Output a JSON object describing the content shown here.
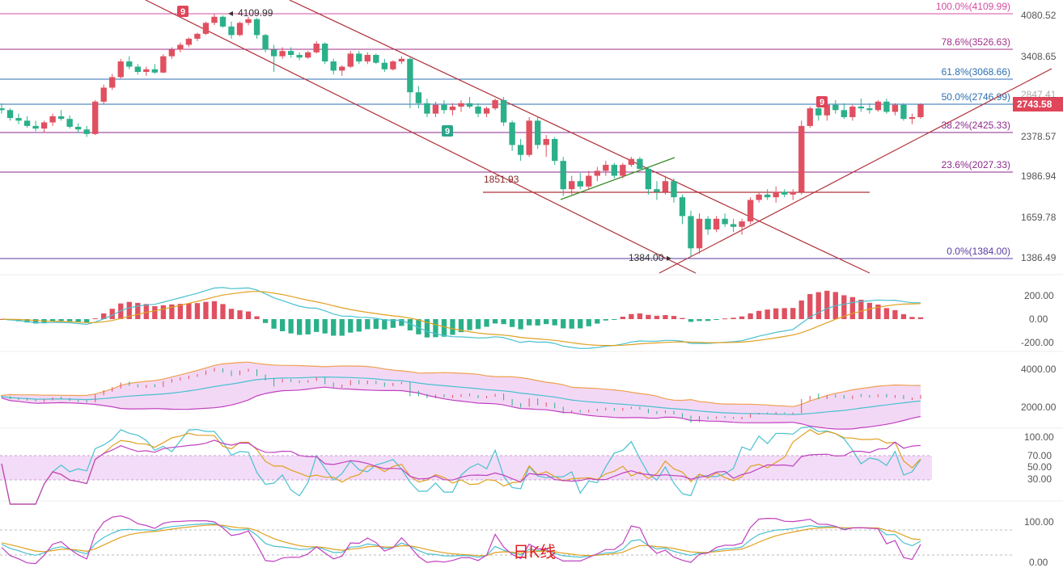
{
  "chart_data": {
    "type": "candlestick",
    "title": "日K线",
    "current_price": "2743.58",
    "price_axis_ticks": [
      "4080.52",
      "3408.65",
      "2847.41",
      "2378.57",
      "1986.94",
      "1659.78",
      "1386.49"
    ],
    "fib_levels": [
      {
        "label": "100.0%(4109.99)",
        "value": 4109.99,
        "color": "#d44ca0"
      },
      {
        "label": "78.6%(3526.63)",
        "value": 3526.63,
        "color": "#a0308a"
      },
      {
        "label": "61.8%(3068.66)",
        "value": 3068.66,
        "color": "#2c6fb0"
      },
      {
        "label": "50.0%(2746.99)",
        "value": 2746.99,
        "color": "#2c6fb0"
      },
      {
        "label": "38.2%(2425.33)",
        "value": 2425.33,
        "color": "#8a2a8a"
      },
      {
        "label": "23.6%(2027.33)",
        "value": 2027.33,
        "color": "#8a2a8a"
      },
      {
        "label": "0.0%(1384.00)",
        "value": 1384.0,
        "color": "#5a3aa0"
      }
    ],
    "annotations": [
      {
        "text": "4109.99",
        "value": 4109.99
      },
      {
        "text": "1851.93",
        "value": 1851.93
      },
      {
        "text": "1384.00",
        "value": 1384.0
      }
    ],
    "td_markers": [
      {
        "text": "9",
        "color": "#e0455a"
      },
      {
        "text": "9",
        "color": "#2aa58a"
      },
      {
        "text": "9",
        "color": "#e0455a"
      }
    ],
    "candles": [
      [
        2700,
        2760,
        2640,
        2680
      ],
      [
        2680,
        2700,
        2560,
        2590
      ],
      [
        2590,
        2640,
        2520,
        2560
      ],
      [
        2560,
        2610,
        2480,
        2500
      ],
      [
        2500,
        2560,
        2440,
        2470
      ],
      [
        2470,
        2560,
        2420,
        2540
      ],
      [
        2540,
        2640,
        2500,
        2610
      ],
      [
        2610,
        2680,
        2560,
        2580
      ],
      [
        2580,
        2620,
        2470,
        2490
      ],
      [
        2490,
        2530,
        2420,
        2460
      ],
      [
        2460,
        2500,
        2380,
        2410
      ],
      [
        2410,
        2800,
        2400,
        2780
      ],
      [
        2780,
        3000,
        2750,
        2960
      ],
      [
        2960,
        3150,
        2930,
        3100
      ],
      [
        3100,
        3380,
        3080,
        3340
      ],
      [
        3340,
        3420,
        3220,
        3260
      ],
      [
        3260,
        3300,
        3140,
        3180
      ],
      [
        3180,
        3260,
        3120,
        3220
      ],
      [
        3220,
        3300,
        3150,
        3170
      ],
      [
        3170,
        3450,
        3160,
        3420
      ],
      [
        3420,
        3560,
        3380,
        3520
      ],
      [
        3520,
        3640,
        3480,
        3600
      ],
      [
        3600,
        3720,
        3560,
        3700
      ],
      [
        3700,
        3800,
        3660,
        3780
      ],
      [
        3780,
        3980,
        3760,
        3960
      ],
      [
        3960,
        4110,
        3920,
        4060
      ],
      [
        4060,
        4080,
        3880,
        3900
      ],
      [
        3900,
        3980,
        3700,
        3760
      ],
      [
        3760,
        3980,
        3740,
        3960
      ],
      [
        3960,
        4060,
        3920,
        4020
      ],
      [
        4020,
        4040,
        3700,
        3760
      ],
      [
        3760,
        3780,
        3480,
        3520
      ],
      [
        3520,
        3600,
        3180,
        3420
      ],
      [
        3420,
        3560,
        3380,
        3500
      ],
      [
        3500,
        3560,
        3400,
        3440
      ],
      [
        3440,
        3480,
        3360,
        3400
      ],
      [
        3400,
        3500,
        3380,
        3480
      ],
      [
        3480,
        3660,
        3460,
        3620
      ],
      [
        3620,
        3640,
        3300,
        3340
      ],
      [
        3340,
        3380,
        3140,
        3200
      ],
      [
        3200,
        3280,
        3120,
        3260
      ],
      [
        3260,
        3500,
        3240,
        3460
      ],
      [
        3460,
        3500,
        3300,
        3340
      ],
      [
        3340,
        3480,
        3300,
        3440
      ],
      [
        3440,
        3460,
        3300,
        3320
      ],
      [
        3320,
        3380,
        3180,
        3220
      ],
      [
        3220,
        3360,
        3200,
        3340
      ],
      [
        3340,
        3420,
        3300,
        3380
      ],
      [
        3380,
        3400,
        2700,
        2900
      ],
      [
        2900,
        2980,
        2700,
        2760
      ],
      [
        2760,
        2820,
        2600,
        2640
      ],
      [
        2640,
        2780,
        2600,
        2740
      ],
      [
        2740,
        2800,
        2640,
        2680
      ],
      [
        2680,
        2760,
        2620,
        2720
      ],
      [
        2720,
        2800,
        2660,
        2760
      ],
      [
        2760,
        2840,
        2700,
        2720
      ],
      [
        2720,
        2760,
        2600,
        2640
      ],
      [
        2640,
        2720,
        2600,
        2700
      ],
      [
        2700,
        2820,
        2680,
        2800
      ],
      [
        2800,
        2840,
        2500,
        2540
      ],
      [
        2540,
        2560,
        2240,
        2300
      ],
      [
        2300,
        2360,
        2140,
        2200
      ],
      [
        2200,
        2600,
        2180,
        2560
      ],
      [
        2560,
        2600,
        2260,
        2300
      ],
      [
        2300,
        2400,
        2180,
        2360
      ],
      [
        2360,
        2380,
        2100,
        2140
      ],
      [
        2140,
        2180,
        1850,
        1900
      ],
      [
        1900,
        2000,
        1860,
        1960
      ],
      [
        1960,
        2020,
        1900,
        1920
      ],
      [
        1920,
        2040,
        1900,
        2000
      ],
      [
        2000,
        2080,
        1960,
        2040
      ],
      [
        2040,
        2140,
        2000,
        2100
      ],
      [
        2100,
        2120,
        1980,
        2000
      ],
      [
        2000,
        2120,
        1980,
        2100
      ],
      [
        2100,
        2180,
        2080,
        2160
      ],
      [
        2160,
        2180,
        2040,
        2060
      ],
      [
        2060,
        2080,
        1860,
        1900
      ],
      [
        1900,
        1960,
        1820,
        1880
      ],
      [
        1880,
        2000,
        1860,
        1960
      ],
      [
        1960,
        1980,
        1800,
        1840
      ],
      [
        1840,
        1860,
        1640,
        1700
      ],
      [
        1700,
        1740,
        1400,
        1460
      ],
      [
        1460,
        1720,
        1420,
        1680
      ],
      [
        1680,
        1700,
        1560,
        1600
      ],
      [
        1600,
        1700,
        1580,
        1680
      ],
      [
        1680,
        1720,
        1620,
        1640
      ],
      [
        1640,
        1680,
        1580,
        1620
      ],
      [
        1620,
        1680,
        1560,
        1660
      ],
      [
        1660,
        1840,
        1640,
        1820
      ],
      [
        1820,
        1880,
        1800,
        1860
      ],
      [
        1860,
        1900,
        1820,
        1840
      ],
      [
        1840,
        1920,
        1800,
        1880
      ],
      [
        1880,
        1900,
        1840,
        1860
      ],
      [
        1860,
        1900,
        1820,
        1880
      ],
      [
        1880,
        2560,
        1860,
        2500
      ],
      [
        2500,
        2720,
        2480,
        2700
      ],
      [
        2700,
        2840,
        2560,
        2620
      ],
      [
        2620,
        2760,
        2560,
        2740
      ],
      [
        2740,
        2800,
        2640,
        2680
      ],
      [
        2680,
        2760,
        2580,
        2600
      ],
      [
        2600,
        2740,
        2560,
        2720
      ],
      [
        2720,
        2820,
        2660,
        2700
      ],
      [
        2700,
        2760,
        2640,
        2680
      ],
      [
        2680,
        2800,
        2660,
        2780
      ],
      [
        2780,
        2820,
        2640,
        2660
      ],
      [
        2660,
        2760,
        2620,
        2740
      ],
      [
        2740,
        2760,
        2560,
        2580
      ],
      [
        2580,
        2640,
        2520,
        2600
      ],
      [
        2600,
        2760,
        2580,
        2744
      ]
    ],
    "macd_axis_ticks": [
      "200.00",
      "0.00",
      "-200.00"
    ],
    "boll_axis_ticks": [
      "4000.00",
      "2000.00"
    ],
    "rsi_axis_ticks": [
      "100.00",
      "70.00",
      "50.00",
      "30.00"
    ],
    "kdj_axis_ticks": [
      "100.00",
      "0.00"
    ],
    "colors": {
      "up": "#e05060",
      "down": "#2bb08a",
      "accent": "#e0455a"
    }
  }
}
